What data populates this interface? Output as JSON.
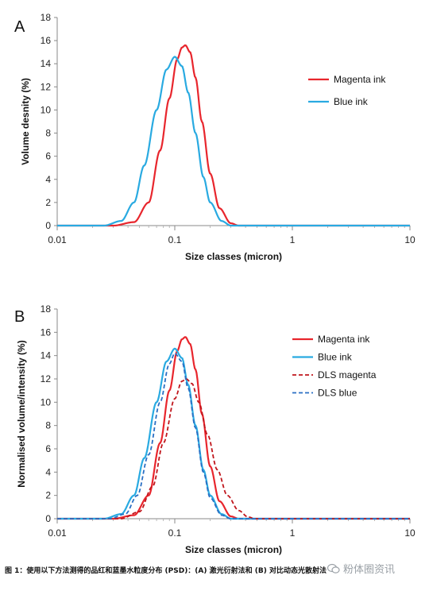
{
  "chart_data": [
    {
      "panel": "A",
      "type": "line",
      "xscale": "log",
      "xlim": [
        0.01,
        10
      ],
      "ylim": [
        0,
        18
      ],
      "xlabel": "Size classes (micron)",
      "ylabel": "Volume desnity (%)",
      "xticks": [
        "0.01",
        "0.1",
        "1",
        "10"
      ],
      "yticks": [
        "0",
        "2",
        "4",
        "6",
        "8",
        "10",
        "12",
        "14",
        "16",
        "18"
      ],
      "legend_position": "right",
      "series": [
        {
          "name": "Magenta ink",
          "color": "#e8262d",
          "style": "solid",
          "peak_x": 0.123,
          "peak_y": 15.6,
          "points": [
            [
              0.01,
              0
            ],
            [
              0.03,
              0
            ],
            [
              0.045,
              0.3
            ],
            [
              0.06,
              2.0
            ],
            [
              0.075,
              6.5
            ],
            [
              0.09,
              11.0
            ],
            [
              0.105,
              14.4
            ],
            [
              0.115,
              15.4
            ],
            [
              0.123,
              15.6
            ],
            [
              0.135,
              15.0
            ],
            [
              0.15,
              12.8
            ],
            [
              0.17,
              9.0
            ],
            [
              0.2,
              4.5
            ],
            [
              0.24,
              1.5
            ],
            [
              0.3,
              0.2
            ],
            [
              0.35,
              0
            ],
            [
              10,
              0
            ]
          ]
        },
        {
          "name": "Blue ink",
          "color": "#29aae1",
          "style": "solid",
          "peak_x": 0.1,
          "peak_y": 14.6,
          "points": [
            [
              0.01,
              0
            ],
            [
              0.025,
              0
            ],
            [
              0.035,
              0.4
            ],
            [
              0.045,
              2.0
            ],
            [
              0.055,
              5.2
            ],
            [
              0.07,
              10.0
            ],
            [
              0.085,
              13.5
            ],
            [
              0.1,
              14.6
            ],
            [
              0.115,
              13.8
            ],
            [
              0.13,
              11.5
            ],
            [
              0.15,
              8.0
            ],
            [
              0.175,
              4.2
            ],
            [
              0.2,
              2.0
            ],
            [
              0.25,
              0.4
            ],
            [
              0.3,
              0
            ],
            [
              10,
              0
            ]
          ]
        }
      ]
    },
    {
      "panel": "B",
      "type": "line",
      "xscale": "log",
      "xlim": [
        0.01,
        10
      ],
      "ylim": [
        0,
        18
      ],
      "xlabel": "Size classes (micron)",
      "ylabel": "Normalised volume/intensity (%)",
      "xticks": [
        "0.01",
        "0.1",
        "1",
        "10"
      ],
      "yticks": [
        "0",
        "2",
        "4",
        "6",
        "8",
        "10",
        "12",
        "14",
        "16",
        "18"
      ],
      "legend_position": "right",
      "series": [
        {
          "name": "Magenta ink",
          "color": "#e8262d",
          "style": "solid",
          "peak_x": 0.123,
          "peak_y": 15.6,
          "points": [
            [
              0.01,
              0
            ],
            [
              0.03,
              0
            ],
            [
              0.045,
              0.3
            ],
            [
              0.06,
              2.0
            ],
            [
              0.075,
              6.5
            ],
            [
              0.09,
              11.0
            ],
            [
              0.105,
              14.4
            ],
            [
              0.115,
              15.4
            ],
            [
              0.123,
              15.6
            ],
            [
              0.135,
              15.0
            ],
            [
              0.15,
              12.8
            ],
            [
              0.17,
              9.0
            ],
            [
              0.2,
              4.5
            ],
            [
              0.24,
              1.5
            ],
            [
              0.3,
              0.2
            ],
            [
              0.35,
              0
            ],
            [
              10,
              0
            ]
          ]
        },
        {
          "name": "Blue ink",
          "color": "#29aae1",
          "style": "solid",
          "peak_x": 0.1,
          "peak_y": 14.6,
          "points": [
            [
              0.01,
              0
            ],
            [
              0.025,
              0
            ],
            [
              0.035,
              0.4
            ],
            [
              0.045,
              2.0
            ],
            [
              0.055,
              5.2
            ],
            [
              0.07,
              10.0
            ],
            [
              0.085,
              13.5
            ],
            [
              0.1,
              14.6
            ],
            [
              0.115,
              13.8
            ],
            [
              0.13,
              11.5
            ],
            [
              0.15,
              8.0
            ],
            [
              0.175,
              4.2
            ],
            [
              0.2,
              2.0
            ],
            [
              0.25,
              0.4
            ],
            [
              0.3,
              0
            ],
            [
              10,
              0
            ]
          ]
        },
        {
          "name": "DLS magenta",
          "color": "#c0161c",
          "style": "dashed",
          "peak_x": 0.125,
          "peak_y": 12.0,
          "points": [
            [
              0.01,
              0
            ],
            [
              0.035,
              0
            ],
            [
              0.05,
              0.6
            ],
            [
              0.065,
              2.8
            ],
            [
              0.08,
              6.5
            ],
            [
              0.1,
              10.3
            ],
            [
              0.115,
              11.8
            ],
            [
              0.125,
              12.0
            ],
            [
              0.14,
              11.6
            ],
            [
              0.16,
              10.0
            ],
            [
              0.19,
              7.2
            ],
            [
              0.23,
              4.2
            ],
            [
              0.28,
              2.0
            ],
            [
              0.35,
              0.7
            ],
            [
              0.42,
              0.15
            ],
            [
              0.48,
              0
            ],
            [
              10,
              0
            ]
          ]
        },
        {
          "name": "DLS blue",
          "color": "#2a6fc4",
          "style": "dashed",
          "peak_x": 0.1,
          "peak_y": 14.2,
          "points": [
            [
              0.01,
              0
            ],
            [
              0.028,
              0
            ],
            [
              0.038,
              0.4
            ],
            [
              0.048,
              2.0
            ],
            [
              0.06,
              5.5
            ],
            [
              0.075,
              10.0
            ],
            [
              0.09,
              13.3
            ],
            [
              0.1,
              14.2
            ],
            [
              0.115,
              13.5
            ],
            [
              0.13,
              11.2
            ],
            [
              0.15,
              7.8
            ],
            [
              0.175,
              4.0
            ],
            [
              0.2,
              1.8
            ],
            [
              0.25,
              0.3
            ],
            [
              0.3,
              0
            ],
            [
              10,
              0
            ]
          ]
        }
      ]
    }
  ],
  "caption": "图 1：使用以下方法测得的品红和蓝墨水粒度分布 (PSD)：(A) 激光衍射法和 (B) 对比动态光散射法",
  "watermark": "粉体圈资讯"
}
